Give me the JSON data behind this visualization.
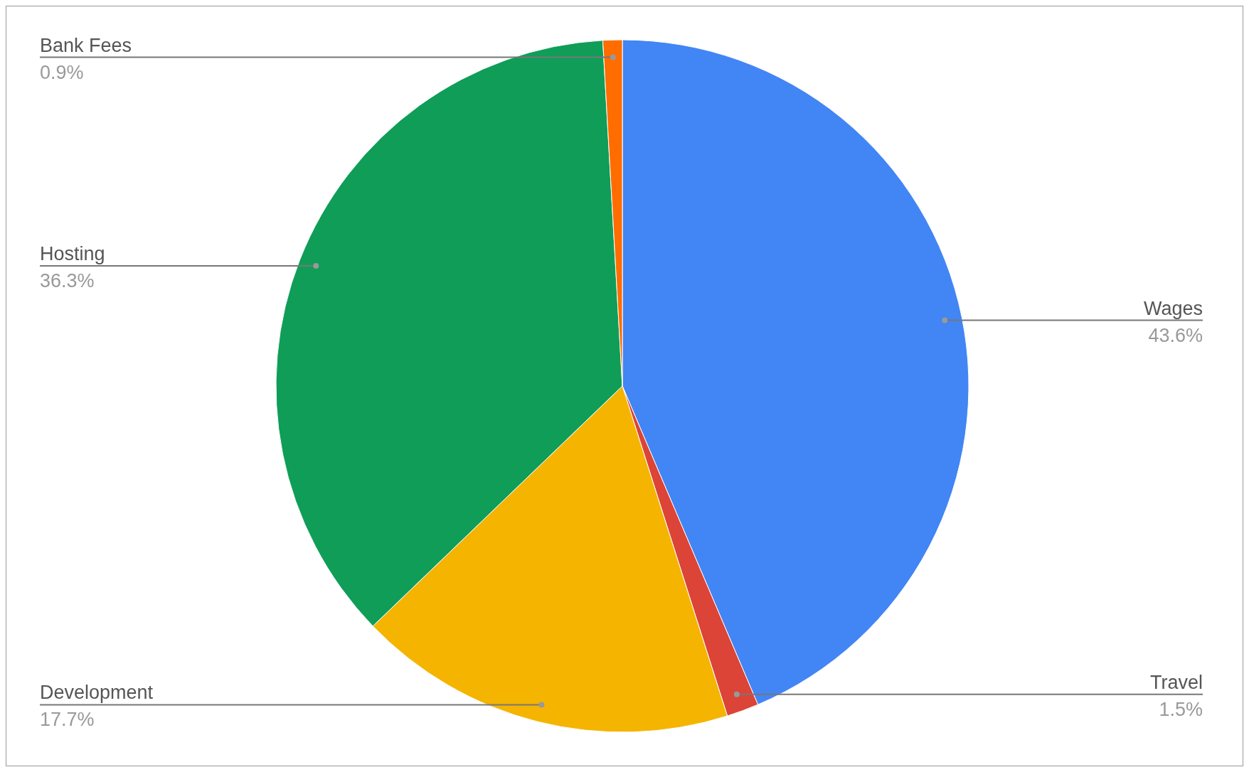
{
  "chart_data": {
    "type": "pie",
    "categories": [
      "Wages",
      "Travel",
      "Development",
      "Hosting",
      "Bank Fees"
    ],
    "values": [
      43.6,
      1.5,
      17.7,
      36.3,
      0.9
    ],
    "value_labels": [
      "43.6%",
      "1.5%",
      "17.7%",
      "36.3%",
      "0.9%"
    ],
    "colors": [
      "#4285f4",
      "#db4437",
      "#f4b400",
      "#0f9d58",
      "#ff6d00"
    ]
  }
}
